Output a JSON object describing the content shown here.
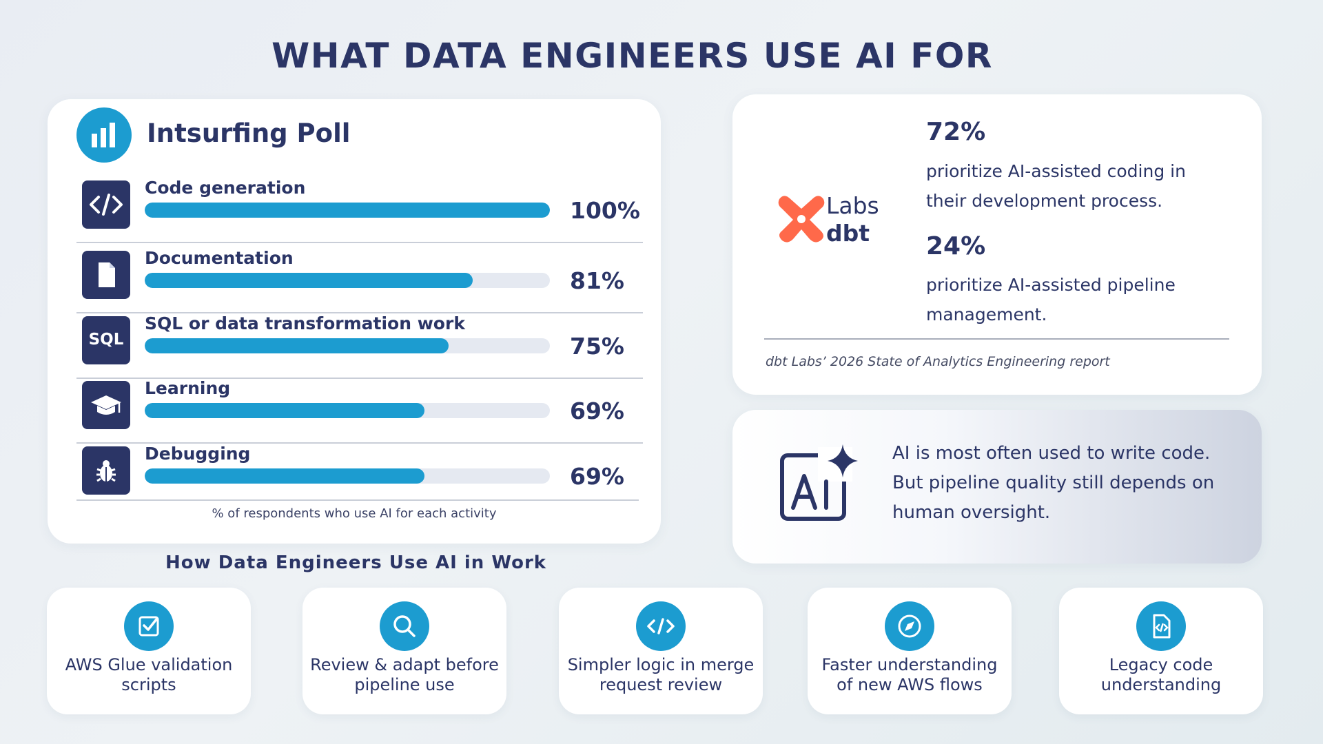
{
  "page": {
    "title": "WHAT DATA ENGINEERS USE AI FOR",
    "subheading": "How Data Engineers Use AI in Work"
  },
  "colors": {
    "navy": "#2b3566",
    "accent_blue": "#1c9cd0",
    "bar_track": "#e5e9f1",
    "dbt_orange": "#ff694a"
  },
  "poll": {
    "title": "Intsurfing Poll",
    "icon": "bar-chart-icon",
    "footnote": "% of respondents who use AI for each activity",
    "rows": [
      {
        "label": "Code generation",
        "pct_text": "100%",
        "icon": "code-icon"
      },
      {
        "label": "Documentation",
        "pct_text": "81%",
        "icon": "document-icon"
      },
      {
        "label": "SQL or data transformation work",
        "pct_text": "75%",
        "icon": "sql-icon",
        "icon_text": "SQL"
      },
      {
        "label": "Learning",
        "pct_text": "69%",
        "icon": "graduation-cap-icon"
      },
      {
        "label": "Debugging",
        "pct_text": "69%",
        "icon": "bug-icon"
      }
    ]
  },
  "chart_data": {
    "type": "bar",
    "orientation": "horizontal",
    "title": "Intsurfing Poll",
    "categories": [
      "Code generation",
      "Documentation",
      "SQL or data transformation work",
      "Learning",
      "Debugging"
    ],
    "values": [
      100,
      81,
      75,
      69,
      69
    ],
    "unit": "%",
    "xlim": [
      0,
      100
    ],
    "caption": "% of respondents who use AI for each activity"
  },
  "dbt": {
    "logo_labs": "Labs",
    "logo_name": "dbt",
    "stats": [
      {
        "value": "72%",
        "desc": "prioritize AI-assisted coding in their development process."
      },
      {
        "value": "24%",
        "desc": "prioritize AI-assisted pipeline management."
      }
    ],
    "source": "dbt Labs’ 2026 State of Analytics Engineering report"
  },
  "insight": {
    "icon": "ai-sparkle-icon",
    "text": "AI is most often used to write code. But pipeline quality still depends on human oversight."
  },
  "use_cases": [
    {
      "label": "AWS Glue validation scripts",
      "icon": "checkbox-icon"
    },
    {
      "label": "Review & adapt before pipeline use",
      "icon": "search-icon"
    },
    {
      "label": "Simpler logic in merge request review",
      "icon": "code-icon"
    },
    {
      "label": "Faster understanding of new AWS flows",
      "icon": "compass-icon"
    },
    {
      "label": "Legacy code understanding",
      "icon": "code-file-icon"
    }
  ]
}
